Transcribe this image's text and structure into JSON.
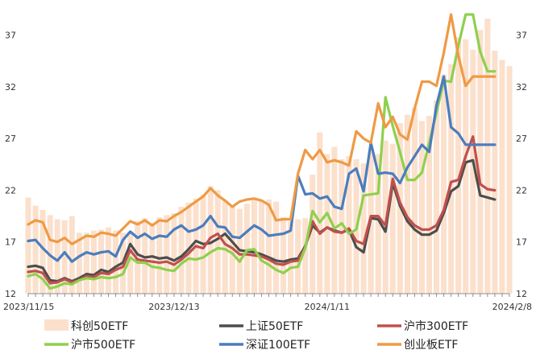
{
  "chart_data": {
    "type": "bar+line",
    "title": "",
    "xlabel": "",
    "ylabel": "",
    "ylim": [
      12,
      39
    ],
    "y_ticks": [
      12,
      17,
      22,
      27,
      32,
      37
    ],
    "x_tick_labels": [
      {
        "label": "2023/11/15",
        "index": 0
      },
      {
        "label": "2023/12/13",
        "index": 20
      },
      {
        "label": "2024/1/11",
        "index": 41
      },
      {
        "label": "2024/2/8",
        "index": 61
      }
    ],
    "grid": false,
    "legend": "bottom",
    "bar_series": {
      "name": "科创50ETF",
      "color": "#fbe0cc",
      "values": [
        21.3,
        20.5,
        20.1,
        19.6,
        19.2,
        19.1,
        19.5,
        17.9,
        17.9,
        18.1,
        18.2,
        18.4,
        18.1,
        17.9,
        18.0,
        19.0,
        19.3,
        18.8,
        19.4,
        19.6,
        19.8,
        20.4,
        20.8,
        21.2,
        21.6,
        22.4,
        22.0,
        21.0,
        20.5,
        20.2,
        20.7,
        21.2,
        21.0,
        21.1,
        20.9,
        19.4,
        19.0,
        19.2,
        19.3,
        23.5,
        27.6,
        25.5,
        26.2,
        25.0,
        25.3,
        25.0,
        24.6,
        25.8,
        25.5,
        26.8,
        26.5,
        28.5,
        29.3,
        30.0,
        28.7,
        29.2,
        30.7,
        33.2,
        34.2,
        36.8,
        36.6,
        35.6,
        37.5,
        38.6,
        35.5,
        34.6,
        34.0
      ]
    },
    "series": [
      {
        "name": "上证50ETF",
        "color": "#4d4d4d",
        "values": [
          14.6,
          14.7,
          14.5,
          13.3,
          13.2,
          13.5,
          13.2,
          13.5,
          13.9,
          13.8,
          14.3,
          14.1,
          14.6,
          15.0,
          16.8,
          15.8,
          15.5,
          15.6,
          15.4,
          15.5,
          15.2,
          15.6,
          16.3,
          17.1,
          16.8,
          16.9,
          17.3,
          17.8,
          17.0,
          16.2,
          16.1,
          16.0,
          15.8,
          15.5,
          15.2,
          15.1,
          15.3,
          15.4,
          16.6,
          18.6,
          17.9,
          18.4,
          18.1,
          17.9,
          18.2,
          16.5,
          16.0,
          19.3,
          19.2,
          18.0,
          22.7,
          20.5,
          19.0,
          18.2,
          17.7,
          17.7,
          18.1,
          19.8,
          21.9,
          22.4,
          24.7,
          24.9,
          21.5,
          21.3,
          21.1
        ]
      },
      {
        "name": "沪市300ETF",
        "color": "#c0504d",
        "values": [
          14.1,
          14.2,
          14.0,
          13.0,
          13.1,
          13.4,
          13.1,
          13.3,
          13.7,
          13.6,
          14.0,
          13.9,
          14.3,
          14.6,
          16.2,
          15.3,
          15.2,
          15.1,
          15.0,
          15.1,
          14.8,
          15.3,
          15.9,
          16.6,
          16.4,
          17.4,
          17.8,
          16.8,
          16.4,
          15.8,
          15.8,
          15.7,
          15.6,
          15.3,
          14.9,
          14.8,
          15.1,
          15.2,
          16.5,
          19.0,
          17.8,
          18.4,
          18.0,
          17.9,
          18.3,
          17.1,
          16.8,
          19.5,
          19.5,
          18.6,
          23.1,
          20.8,
          19.4,
          18.6,
          18.2,
          18.2,
          18.6,
          20.1,
          22.8,
          23.0,
          25.3,
          27.2,
          22.6,
          22.1,
          22.0
        ]
      },
      {
        "name": "沪市500ETF",
        "color": "#8ed04e",
        "values": [
          13.7,
          13.9,
          13.4,
          12.5,
          12.7,
          13.0,
          12.9,
          13.3,
          13.5,
          13.4,
          13.6,
          13.5,
          13.6,
          13.9,
          15.5,
          15.0,
          15.0,
          14.6,
          14.5,
          14.3,
          14.2,
          14.9,
          15.4,
          15.3,
          15.5,
          16.0,
          16.4,
          16.3,
          15.9,
          15.1,
          16.2,
          16.3,
          15.2,
          14.8,
          14.3,
          14.0,
          14.5,
          14.6,
          16.4,
          20.0,
          18.9,
          19.8,
          18.3,
          18.8,
          17.8,
          18.2,
          21.5,
          21.6,
          21.7,
          31.0,
          28.2,
          25.7,
          23.0,
          23.0,
          23.7,
          26.6,
          29.5,
          32.6,
          32.5,
          36.0,
          40.0,
          40.0,
          35.4,
          33.5,
          33.5
        ]
      },
      {
        "name": "深证100ETF",
        "color": "#4b7dbe",
        "values": [
          17.1,
          17.2,
          16.4,
          15.7,
          15.2,
          16.0,
          15.1,
          15.6,
          16.0,
          15.8,
          16.0,
          16.1,
          15.6,
          17.2,
          18.0,
          17.4,
          17.8,
          17.3,
          17.6,
          17.5,
          18.2,
          18.6,
          18.0,
          18.2,
          18.6,
          19.5,
          18.5,
          18.4,
          17.5,
          17.4,
          18.0,
          18.6,
          18.2,
          17.6,
          17.7,
          17.8,
          18.1,
          23.4,
          21.6,
          21.7,
          21.2,
          21.4,
          20.4,
          20.2,
          23.6,
          24.1,
          21.9,
          26.6,
          23.6,
          23.7,
          23.6,
          22.7,
          24.2,
          25.3,
          26.4,
          25.7,
          30.2,
          33.0,
          28.1,
          27.5,
          26.4,
          26.4,
          26.4,
          26.4,
          26.4
        ]
      },
      {
        "name": "创业板ETF",
        "color": "#ef9a45",
        "values": [
          18.7,
          19.1,
          18.9,
          17.2,
          17.0,
          17.4,
          16.8,
          17.2,
          17.6,
          17.5,
          17.9,
          17.8,
          17.6,
          18.3,
          19.0,
          18.7,
          19.1,
          18.6,
          19.1,
          19.0,
          19.5,
          19.9,
          20.4,
          20.9,
          21.4,
          22.2,
          21.5,
          21.0,
          20.4,
          20.9,
          21.1,
          21.2,
          21.0,
          20.6,
          19.1,
          19.2,
          19.2,
          23.6,
          25.9,
          25.0,
          25.9,
          24.7,
          24.9,
          24.7,
          24.4,
          27.7,
          27.0,
          26.6,
          30.4,
          28.1,
          29.1,
          27.4,
          26.9,
          29.9,
          32.5,
          32.5,
          32.1,
          35.3,
          39.5,
          35.0,
          32.1,
          33.0,
          33.0,
          33.0,
          33.0
        ]
      }
    ]
  }
}
